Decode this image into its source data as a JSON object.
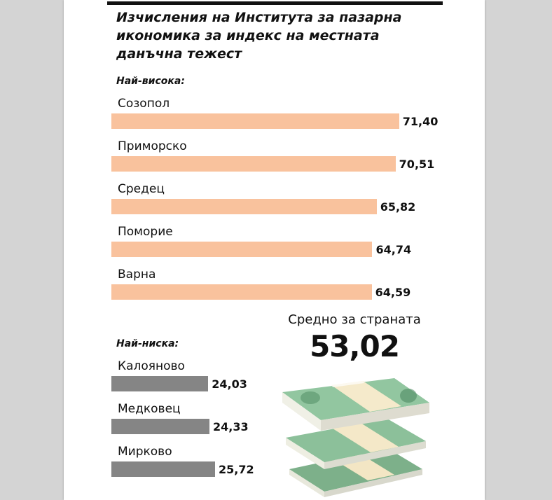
{
  "title": "Изчисления на Института за пазарна икономика за  индекс на местната данъчна тежест",
  "highest_label": "Най-висока:",
  "lowest_label": "Най-ниска:",
  "average": {
    "label": "Средно за страната",
    "value": "53,02"
  },
  "colors": {
    "high": "#f9c29d",
    "low": "#858585"
  },
  "chart_data": {
    "type": "bar",
    "orientation": "horizontal",
    "series": [
      {
        "group": "Най-висока:",
        "categories": [
          "Созопол",
          "Приморско",
          "Средец",
          "Поморие",
          "Варна"
        ],
        "values": [
          71.4,
          70.51,
          65.82,
          64.74,
          64.59
        ],
        "value_labels": [
          "71,40",
          "70,51",
          "65,82",
          "64,74",
          "64,59"
        ]
      },
      {
        "group": "Най-ниска:",
        "categories": [
          "Калояново",
          "Медковец",
          "Мирково"
        ],
        "values": [
          24.03,
          24.33,
          25.72
        ],
        "value_labels": [
          "24,03",
          "24,33",
          "25,72"
        ]
      }
    ],
    "xlim": [
      0,
      73
    ]
  }
}
